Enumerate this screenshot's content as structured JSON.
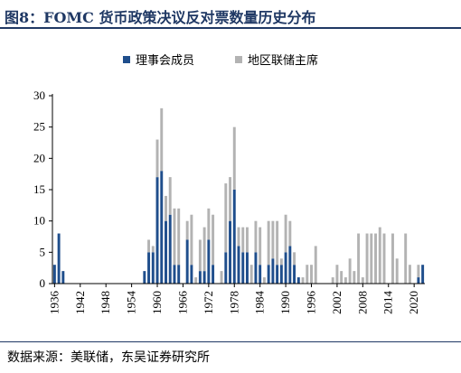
{
  "figure": {
    "title": "图8：FOMC 货币政策决议反对票数量历史分布",
    "source": "数据来源：美联储，东吴证券研究所"
  },
  "chart_data": {
    "type": "bar",
    "stacked": true,
    "x": [
      1936,
      1937,
      1938,
      1939,
      1940,
      1941,
      1942,
      1943,
      1944,
      1945,
      1946,
      1947,
      1948,
      1949,
      1950,
      1951,
      1952,
      1953,
      1954,
      1955,
      1956,
      1957,
      1958,
      1959,
      1960,
      1961,
      1962,
      1963,
      1964,
      1965,
      1966,
      1967,
      1968,
      1969,
      1970,
      1971,
      1972,
      1973,
      1974,
      1975,
      1976,
      1977,
      1978,
      1979,
      1980,
      1981,
      1982,
      1983,
      1984,
      1985,
      1986,
      1987,
      1988,
      1989,
      1990,
      1991,
      1992,
      1993,
      1994,
      1995,
      1996,
      1997,
      1998,
      1999,
      2000,
      2001,
      2002,
      2003,
      2004,
      2005,
      2006,
      2007,
      2008,
      2009,
      2010,
      2011,
      2012,
      2013,
      2014,
      2015,
      2016,
      2017,
      2018,
      2019,
      2020,
      2021,
      2022
    ],
    "series": [
      {
        "name": "理事会成员",
        "color": "#1f4e8c",
        "values": [
          3,
          8,
          2,
          0,
          0,
          0,
          0,
          0,
          0,
          0,
          0,
          0,
          0,
          0,
          0,
          0,
          0,
          0,
          0,
          0,
          0,
          2,
          5,
          5,
          17,
          18,
          10,
          11,
          3,
          3,
          0,
          7,
          3,
          0,
          2,
          2,
          7,
          3,
          0,
          0,
          5,
          10,
          15,
          6,
          5,
          5,
          0,
          5,
          3,
          0,
          3,
          4,
          3,
          3,
          5,
          6,
          3,
          1,
          0,
          0,
          0,
          0,
          0,
          0,
          0,
          0,
          0,
          0,
          0,
          0,
          0,
          0,
          0,
          0,
          0,
          0,
          0,
          0,
          0,
          0,
          0,
          0,
          0,
          0,
          0,
          1,
          3
        ]
      },
      {
        "name": "地区联储主席",
        "color": "#b3b3b3",
        "values": [
          0,
          0,
          0,
          0,
          0,
          0,
          0,
          0,
          0,
          0,
          0,
          0,
          0,
          0,
          0,
          0,
          0,
          0,
          0,
          0,
          0,
          0,
          2,
          1,
          6,
          10,
          4,
          6,
          9,
          9,
          0,
          3,
          8,
          1,
          5,
          7,
          5,
          8,
          0,
          2,
          11,
          7,
          10,
          3,
          4,
          4,
          3,
          5,
          6,
          1,
          7,
          6,
          7,
          1,
          6,
          4,
          2,
          0,
          1,
          3,
          3,
          6,
          0,
          0,
          0,
          1,
          3,
          2,
          1,
          4,
          2,
          8,
          1,
          8,
          8,
          8,
          9,
          8,
          0,
          8,
          4,
          0,
          8,
          3,
          0,
          2,
          0
        ]
      }
    ],
    "xticks": [
      "1936",
      "1942",
      "1948",
      "1954",
      "1960",
      "1966",
      "1972",
      "1978",
      "1984",
      "1990",
      "1996",
      "2002",
      "2008",
      "2014",
      "2020"
    ],
    "yticks": [
      "0",
      "5",
      "10",
      "15",
      "20",
      "25",
      "30"
    ],
    "ylim": [
      0,
      30
    ],
    "legend_position": "top-center",
    "grid": false
  }
}
